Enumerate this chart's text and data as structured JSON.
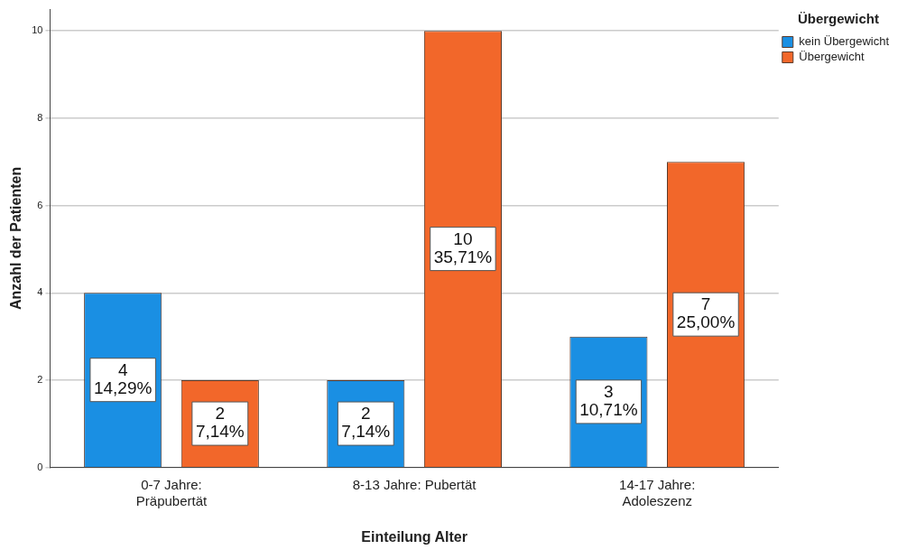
{
  "chart_data": {
    "type": "bar",
    "xlabel": "Einteilung Alter",
    "ylabel": "Anzahl der Patienten",
    "legend_title": "Übergewicht",
    "categories": [
      "0-7 Jahre:\nPräpubertät",
      "8-13 Jahre: Pubertät",
      "14-17 Jahre:\nAdoleszenz"
    ],
    "series": [
      {
        "name": "kein Übergewicht",
        "color": "#1a8fe3",
        "values": [
          4,
          2,
          3
        ],
        "value_labels": [
          "4\n14,29%",
          "2\n7,14%",
          "3\n10,71%"
        ]
      },
      {
        "name": "Übergewicht",
        "color": "#f2672a",
        "values": [
          2,
          10,
          7
        ],
        "value_labels": [
          "2\n7,14%",
          "10\n35,71%",
          "7\n25,00%"
        ]
      }
    ],
    "ylim": [
      0,
      10.5
    ],
    "yticks": [
      0,
      2,
      4,
      6,
      8,
      10
    ],
    "grid": "y",
    "legend": "top right"
  }
}
